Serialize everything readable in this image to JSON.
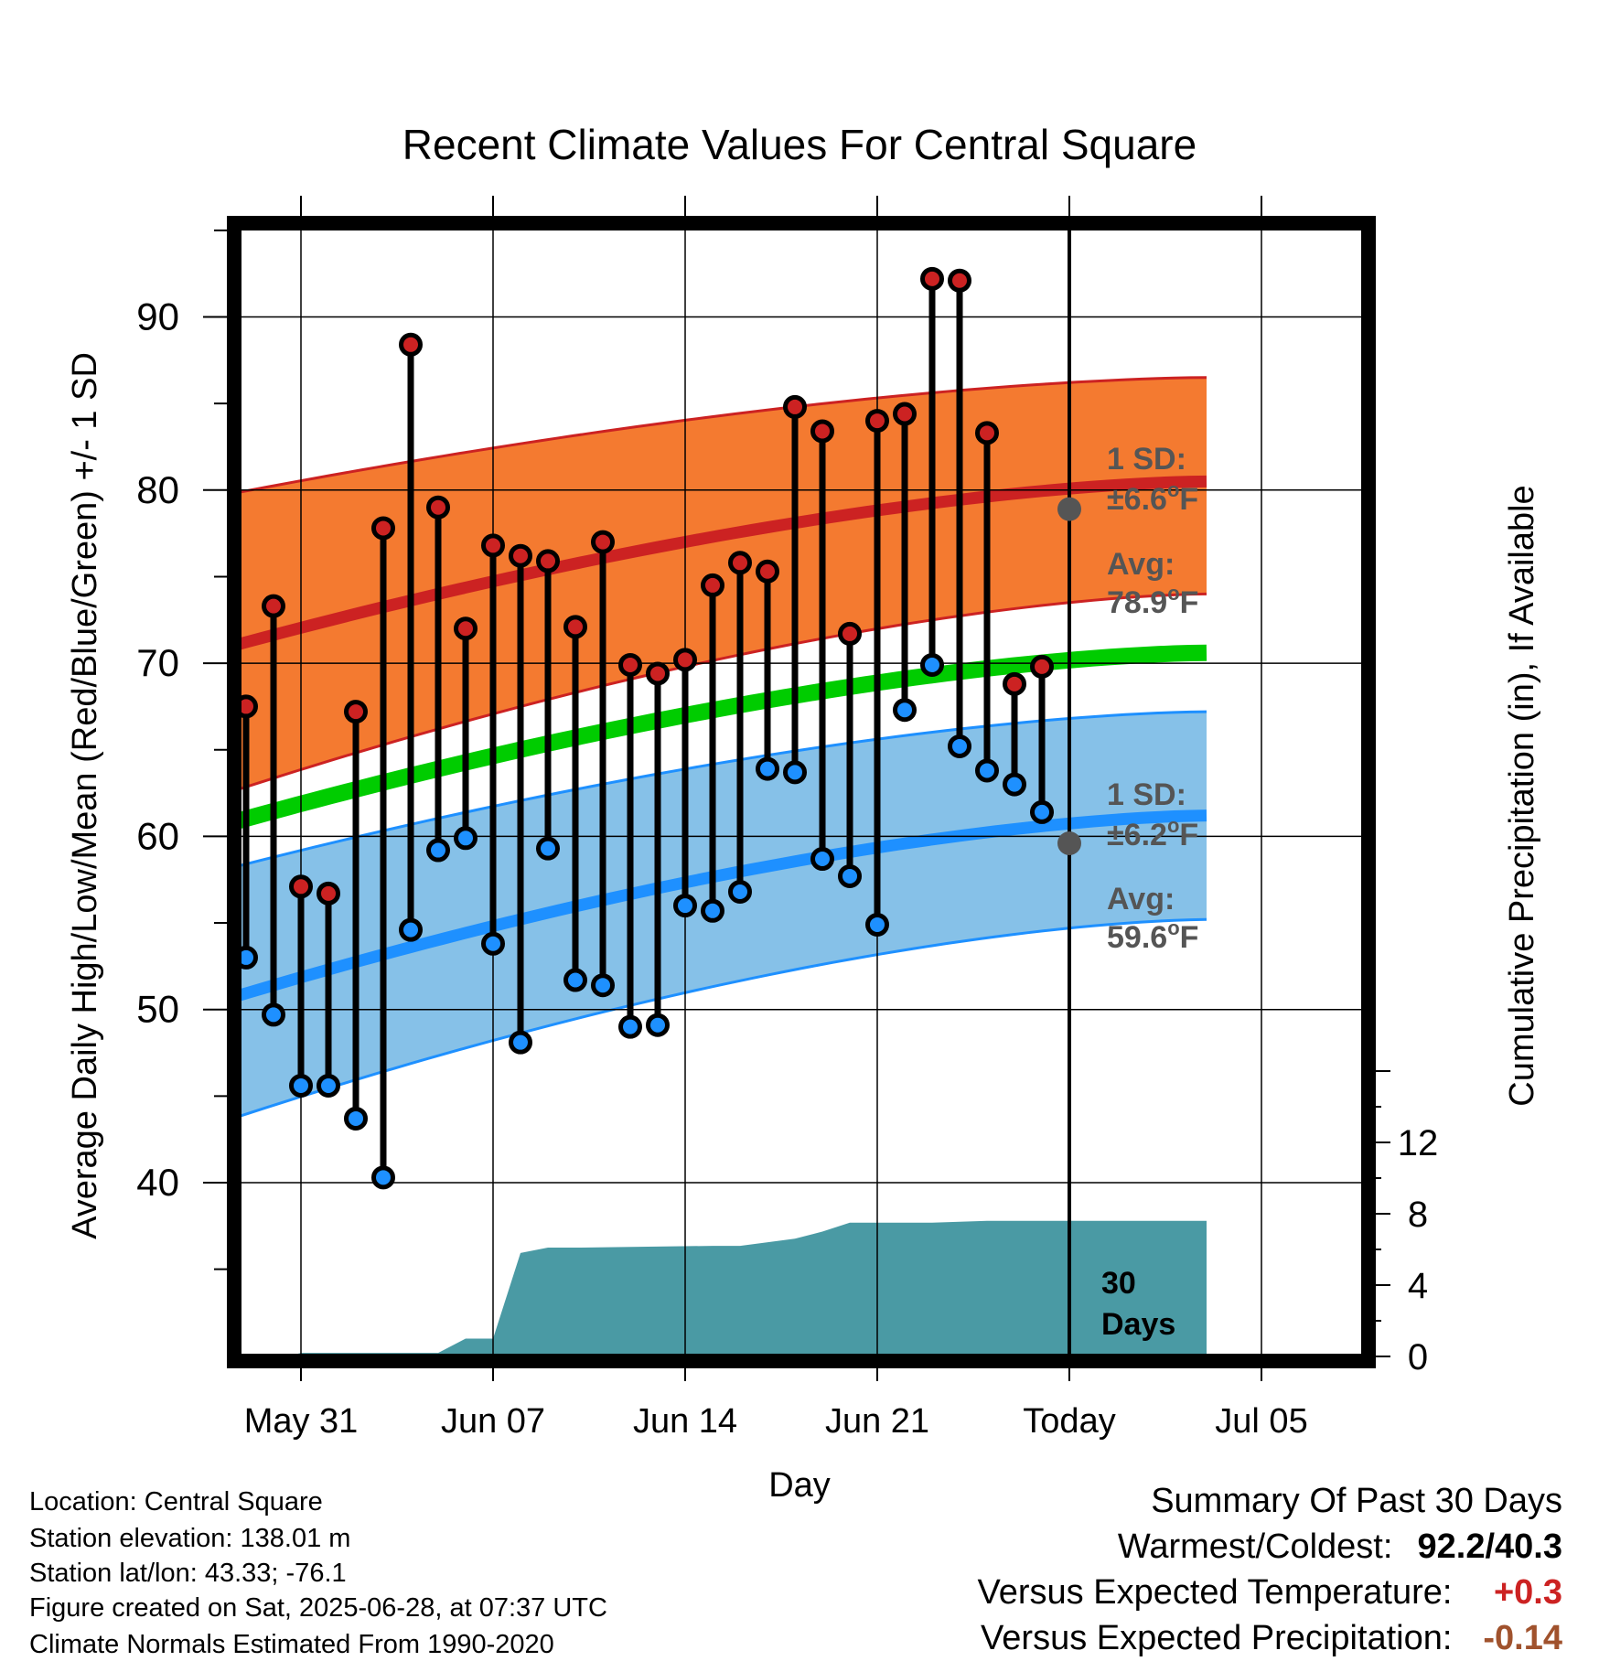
{
  "chart_data": {
    "type": "line",
    "title": "Recent Climate Values For Central Square",
    "xlabel": "Day",
    "ylabel": "Average Daily High/Low/Mean (Red/Blue/Green) +/- 1 SD",
    "y2label": "Cumulative Precipitation (in), If Available",
    "x_tick_labels": [
      "May 31",
      "Jun 07",
      "Jun 14",
      "Jun 21",
      "Today",
      "Jul 05"
    ],
    "y_ticks": [
      40,
      50,
      60,
      70,
      80,
      90
    ],
    "y2_ticks": [
      0,
      4,
      8,
      12
    ],
    "ylim": [
      33,
      97
    ],
    "y2lim": [
      0,
      25
    ],
    "grid": true,
    "days": [
      "May 29",
      "May 30",
      "May 31",
      "Jun 01",
      "Jun 02",
      "Jun 03",
      "Jun 04",
      "Jun 05",
      "Jun 06",
      "Jun 07",
      "Jun 08",
      "Jun 09",
      "Jun 10",
      "Jun 11",
      "Jun 12",
      "Jun 13",
      "Jun 14",
      "Jun 15",
      "Jun 16",
      "Jun 17",
      "Jun 18",
      "Jun 19",
      "Jun 20",
      "Jun 21",
      "Jun 22",
      "Jun 23",
      "Jun 24",
      "Jun 25",
      "Jun 26",
      "Jun 27"
    ],
    "series": [
      {
        "name": "High",
        "color": "#cc2222",
        "values": [
          67.5,
          73.3,
          57.1,
          56.7,
          67.2,
          77.8,
          88.4,
          79.0,
          72.0,
          76.8,
          76.2,
          75.9,
          72.1,
          77.0,
          69.9,
          69.4,
          70.2,
          74.5,
          75.8,
          75.3,
          84.8,
          83.4,
          71.7,
          84.0,
          84.4,
          92.2,
          92.1,
          83.3,
          68.8,
          69.8
        ]
      },
      {
        "name": "Low",
        "color": "#1e90ff",
        "values": [
          53.0,
          49.7,
          45.6,
          45.6,
          43.7,
          40.3,
          54.6,
          59.2,
          59.9,
          53.8,
          48.1,
          59.3,
          51.7,
          51.4,
          49.0,
          49.1,
          56.0,
          55.7,
          56.8,
          63.9,
          63.7,
          58.7,
          57.7,
          54.9,
          67.3,
          69.9,
          65.2,
          63.8,
          63.0,
          61.4
        ]
      }
    ],
    "normals": {
      "high_avg": [
        71.0,
        80.5
      ],
      "high_upper": [
        79.8,
        86.5
      ],
      "high_lower": [
        62.6,
        74.0
      ],
      "mean_avg": [
        60.8,
        70.6
      ],
      "low_avg": [
        50.7,
        61.2
      ],
      "low_upper": [
        58.2,
        67.2
      ],
      "low_lower": [
        43.7,
        55.2
      ]
    },
    "precip_cumulative": {
      "x": [
        -0.5,
        1.5,
        2.0,
        7.0,
        8.0,
        9.0,
        10.0,
        11.0,
        12.0,
        17.0,
        18.0,
        20.0,
        21.0,
        22.0,
        25.0,
        27.0,
        30.0,
        35.0
      ],
      "y": [
        0,
        0,
        0.2,
        0.2,
        1.0,
        1.0,
        5.8,
        6.1,
        6.1,
        6.2,
        6.2,
        6.6,
        7.0,
        7.5,
        7.5,
        7.6,
        7.6,
        7.6
      ]
    },
    "annotations": {
      "high_sd": "1 SD:",
      "high_sd_val": "±6.6°F",
      "high_avg_label": "Avg:",
      "high_avg_val": "78.9°F",
      "low_sd": "1 SD:",
      "low_sd_val": "±6.2°F",
      "low_avg_label": "Avg:",
      "low_avg_val": "59.6°F",
      "today_high": 78.9,
      "today_low": 59.6,
      "days_line1": "30",
      "days_line2": "Days"
    },
    "colors": {
      "high_band": "#f47a30",
      "high_line": "#cc2222",
      "low_band": "#86c1e8",
      "low_line": "#1e90ff",
      "mean_line": "#00cc00",
      "precip": "#4a9aa4"
    }
  },
  "info": {
    "location": "Location: Central Square",
    "elevation": "Station elevation: 138.01 m",
    "latlon": "Station lat/lon: 43.33; -76.1",
    "created": "Figure created on Sat, 2025-06-28, at 07:37 UTC",
    "normals": "Climate Normals Estimated From 1990-2020"
  },
  "summary": {
    "title": "Summary Of Past 30 Days",
    "warm_cold_label": "Warmest/Coldest:",
    "warm_cold_value": "92.2/40.3",
    "temp_label": "Versus Expected Temperature:",
    "temp_value": "+0.3",
    "temp_color": "#cc2222",
    "precip_label": "Versus Expected Precipitation:",
    "precip_value": "-0.14",
    "precip_color": "#a0522d"
  }
}
